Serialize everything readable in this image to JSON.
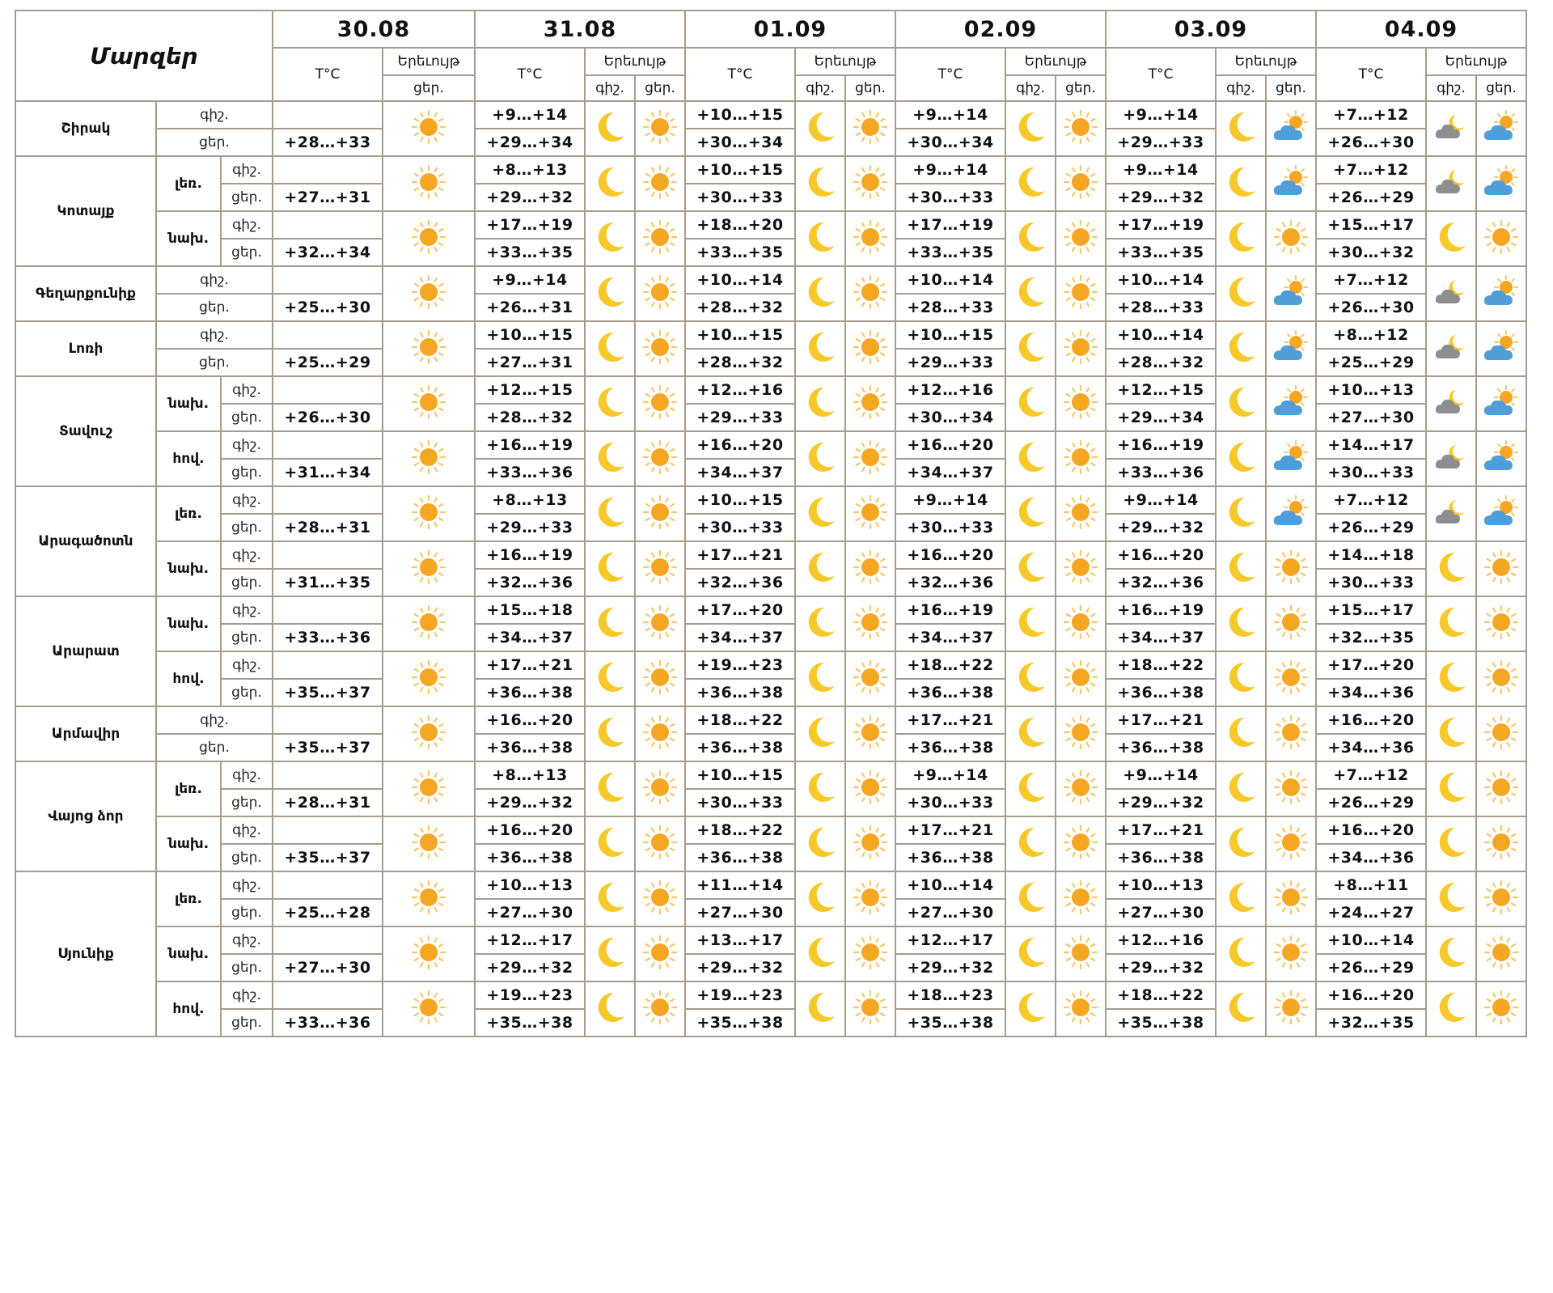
{
  "header": {
    "regions_label": "Մարզեր",
    "temp_label": "T°C",
    "phenomenon_label": "Երեւույթ",
    "night_label": "գիշ.",
    "day_label": "ցեր.",
    "dates": [
      "30.08",
      "31.08",
      "01.09",
      "02.09",
      "03.09",
      "04.09"
    ]
  },
  "icons": {
    "sun": "sun-icon",
    "moon": "moon-icon",
    "cloud_moon": "cloud-moon-icon",
    "cloud_sun": "cloud-sun-icon"
  },
  "colors": {
    "grid": "#a79b8c",
    "sun": "#f5a623",
    "moon": "#f7c82a",
    "cloud_blue": "#4f9ed8",
    "cloud_gray": "#8e8e8e"
  },
  "regions": [
    {
      "name": "Շիրակ",
      "zones": [
        {
          "name": "",
          "night": [
            "",
            "+9…+14",
            "+10…+15",
            "+9…+14",
            "+9…+14",
            "+7…+12"
          ],
          "day": [
            "+28…+33",
            "+29…+34",
            "+30…+34",
            "+30…+34",
            "+29…+33",
            "+26…+30"
          ],
          "night_icons": [
            "",
            "moon",
            "moon",
            "moon",
            "moon",
            "cloud_moon"
          ],
          "day_icons": [
            "sun",
            "sun",
            "sun",
            "sun",
            "cloud_sun",
            "cloud_sun"
          ]
        }
      ]
    },
    {
      "name": "Կոտայք",
      "zones": [
        {
          "name": "լեռ.",
          "night": [
            "",
            "+8…+13",
            "+10…+15",
            "+9…+14",
            "+9…+14",
            "+7…+12"
          ],
          "day": [
            "+27…+31",
            "+29…+32",
            "+30…+33",
            "+30…+33",
            "+29…+32",
            "+26…+29"
          ],
          "night_icons": [
            "",
            "moon",
            "moon",
            "moon",
            "moon",
            "cloud_moon"
          ],
          "day_icons": [
            "sun",
            "sun",
            "sun",
            "sun",
            "cloud_sun",
            "cloud_sun"
          ]
        },
        {
          "name": "նախ.",
          "night": [
            "",
            "+17…+19",
            "+18…+20",
            "+17…+19",
            "+17…+19",
            "+15…+17"
          ],
          "day": [
            "+32…+34",
            "+33…+35",
            "+33…+35",
            "+33…+35",
            "+33…+35",
            "+30…+32"
          ],
          "night_icons": [
            "",
            "moon",
            "moon",
            "moon",
            "moon",
            "moon"
          ],
          "day_icons": [
            "sun",
            "sun",
            "sun",
            "sun",
            "sun",
            "sun"
          ]
        }
      ]
    },
    {
      "name": "Գեղարքունիք",
      "zones": [
        {
          "name": "",
          "night": [
            "",
            "+9…+14",
            "+10…+14",
            "+10…+14",
            "+10…+14",
            "+7…+12"
          ],
          "day": [
            "+25…+30",
            "+26…+31",
            "+28…+32",
            "+28…+33",
            "+28…+33",
            "+26…+30"
          ],
          "night_icons": [
            "",
            "moon",
            "moon",
            "moon",
            "moon",
            "cloud_moon"
          ],
          "day_icons": [
            "sun",
            "sun",
            "sun",
            "sun",
            "cloud_sun",
            "cloud_sun"
          ]
        }
      ]
    },
    {
      "name": "Լոռի",
      "zones": [
        {
          "name": "",
          "night": [
            "",
            "+10…+15",
            "+10…+15",
            "+10…+15",
            "+10…+14",
            "+8…+12"
          ],
          "day": [
            "+25…+29",
            "+27…+31",
            "+28…+32",
            "+29…+33",
            "+28…+32",
            "+25…+29"
          ],
          "night_icons": [
            "",
            "moon",
            "moon",
            "moon",
            "moon",
            "cloud_moon"
          ],
          "day_icons": [
            "sun",
            "sun",
            "sun",
            "sun",
            "cloud_sun",
            "cloud_sun"
          ]
        }
      ]
    },
    {
      "name": "Տավուշ",
      "zones": [
        {
          "name": "նախ.",
          "night": [
            "",
            "+12…+15",
            "+12…+16",
            "+12…+16",
            "+12…+15",
            "+10…+13"
          ],
          "day": [
            "+26…+30",
            "+28…+32",
            "+29…+33",
            "+30…+34",
            "+29…+34",
            "+27…+30"
          ],
          "night_icons": [
            "",
            "moon",
            "moon",
            "moon",
            "moon",
            "cloud_moon"
          ],
          "day_icons": [
            "sun",
            "sun",
            "sun",
            "sun",
            "cloud_sun",
            "cloud_sun"
          ]
        },
        {
          "name": "հով.",
          "night": [
            "",
            "+16…+19",
            "+16…+20",
            "+16…+20",
            "+16…+19",
            "+14…+17"
          ],
          "day": [
            "+31…+34",
            "+33…+36",
            "+34…+37",
            "+34…+37",
            "+33…+36",
            "+30…+33"
          ],
          "night_icons": [
            "",
            "moon",
            "moon",
            "moon",
            "moon",
            "cloud_moon"
          ],
          "day_icons": [
            "sun",
            "sun",
            "sun",
            "sun",
            "cloud_sun",
            "cloud_sun"
          ]
        }
      ]
    },
    {
      "name": "Արագածոտն",
      "zones": [
        {
          "name": "լեռ.",
          "night": [
            "",
            "+8…+13",
            "+10…+15",
            "+9…+14",
            "+9…+14",
            "+7…+12"
          ],
          "day": [
            "+28…+31",
            "+29…+33",
            "+30…+33",
            "+30…+33",
            "+29…+32",
            "+26…+29"
          ],
          "night_icons": [
            "",
            "moon",
            "moon",
            "moon",
            "moon",
            "cloud_moon"
          ],
          "day_icons": [
            "sun",
            "sun",
            "sun",
            "sun",
            "cloud_sun",
            "cloud_sun"
          ]
        },
        {
          "name": "նախ.",
          "night": [
            "",
            "+16…+19",
            "+17…+21",
            "+16…+20",
            "+16…+20",
            "+14…+18"
          ],
          "day": [
            "+31…+35",
            "+32…+36",
            "+32…+36",
            "+32…+36",
            "+32…+36",
            "+30…+33"
          ],
          "night_icons": [
            "",
            "moon",
            "moon",
            "moon",
            "moon",
            "moon"
          ],
          "day_icons": [
            "sun",
            "sun",
            "sun",
            "sun",
            "sun",
            "sun"
          ]
        }
      ]
    },
    {
      "name": "Արարատ",
      "zones": [
        {
          "name": "նախ.",
          "night": [
            "",
            "+15…+18",
            "+17…+20",
            "+16…+19",
            "+16…+19",
            "+15…+17"
          ],
          "day": [
            "+33…+36",
            "+34…+37",
            "+34…+37",
            "+34…+37",
            "+34…+37",
            "+32…+35"
          ],
          "night_icons": [
            "",
            "moon",
            "moon",
            "moon",
            "moon",
            "moon"
          ],
          "day_icons": [
            "sun",
            "sun",
            "sun",
            "sun",
            "sun",
            "sun"
          ]
        },
        {
          "name": "հով.",
          "night": [
            "",
            "+17…+21",
            "+19…+23",
            "+18…+22",
            "+18…+22",
            "+17…+20"
          ],
          "day": [
            "+35…+37",
            "+36…+38",
            "+36…+38",
            "+36…+38",
            "+36…+38",
            "+34…+36"
          ],
          "night_icons": [
            "",
            "moon",
            "moon",
            "moon",
            "moon",
            "moon"
          ],
          "day_icons": [
            "sun",
            "sun",
            "sun",
            "sun",
            "sun",
            "sun"
          ]
        }
      ]
    },
    {
      "name": "Արմավիր",
      "zones": [
        {
          "name": "",
          "night": [
            "",
            "+16…+20",
            "+18…+22",
            "+17…+21",
            "+17…+21",
            "+16…+20"
          ],
          "day": [
            "+35…+37",
            "+36…+38",
            "+36…+38",
            "+36…+38",
            "+36…+38",
            "+34…+36"
          ],
          "night_icons": [
            "",
            "moon",
            "moon",
            "moon",
            "moon",
            "moon"
          ],
          "day_icons": [
            "sun",
            "sun",
            "sun",
            "sun",
            "sun",
            "sun"
          ]
        }
      ]
    },
    {
      "name": "Վայոց ձոր",
      "zones": [
        {
          "name": "լեռ.",
          "night": [
            "",
            "+8…+13",
            "+10…+15",
            "+9…+14",
            "+9…+14",
            "+7…+12"
          ],
          "day": [
            "+28…+31",
            "+29…+32",
            "+30…+33",
            "+30…+33",
            "+29…+32",
            "+26…+29"
          ],
          "night_icons": [
            "",
            "moon",
            "moon",
            "moon",
            "moon",
            "moon"
          ],
          "day_icons": [
            "sun",
            "sun",
            "sun",
            "sun",
            "sun",
            "sun"
          ]
        },
        {
          "name": "նախ.",
          "night": [
            "",
            "+16…+20",
            "+18…+22",
            "+17…+21",
            "+17…+21",
            "+16…+20"
          ],
          "day": [
            "+35…+37",
            "+36…+38",
            "+36…+38",
            "+36…+38",
            "+36…+38",
            "+34…+36"
          ],
          "night_icons": [
            "",
            "moon",
            "moon",
            "moon",
            "moon",
            "moon"
          ],
          "day_icons": [
            "sun",
            "sun",
            "sun",
            "sun",
            "sun",
            "sun"
          ]
        }
      ]
    },
    {
      "name": "Սյունիք",
      "zones": [
        {
          "name": "լեռ.",
          "night": [
            "",
            "+10…+13",
            "+11…+14",
            "+10…+14",
            "+10…+13",
            "+8…+11"
          ],
          "day": [
            "+25…+28",
            "+27…+30",
            "+27…+30",
            "+27…+30",
            "+27…+30",
            "+24…+27"
          ],
          "night_icons": [
            "",
            "moon",
            "moon",
            "moon",
            "moon",
            "moon"
          ],
          "day_icons": [
            "sun",
            "sun",
            "sun",
            "sun",
            "sun",
            "sun"
          ]
        },
        {
          "name": "նախ.",
          "night": [
            "",
            "+12…+17",
            "+13…+17",
            "+12…+17",
            "+12…+16",
            "+10…+14"
          ],
          "day": [
            "+27…+30",
            "+29…+32",
            "+29…+32",
            "+29…+32",
            "+29…+32",
            "+26…+29"
          ],
          "night_icons": [
            "",
            "moon",
            "moon",
            "moon",
            "moon",
            "moon"
          ],
          "day_icons": [
            "sun",
            "sun",
            "sun",
            "sun",
            "sun",
            "sun"
          ]
        },
        {
          "name": "հով.",
          "night": [
            "",
            "+19…+23",
            "+19…+23",
            "+18…+23",
            "+18…+22",
            "+16…+20"
          ],
          "day": [
            "+33…+36",
            "+35…+38",
            "+35…+38",
            "+35…+38",
            "+35…+38",
            "+32…+35"
          ],
          "night_icons": [
            "",
            "moon",
            "moon",
            "moon",
            "moon",
            "moon"
          ],
          "day_icons": [
            "sun",
            "sun",
            "sun",
            "sun",
            "sun",
            "sun"
          ]
        }
      ]
    }
  ]
}
